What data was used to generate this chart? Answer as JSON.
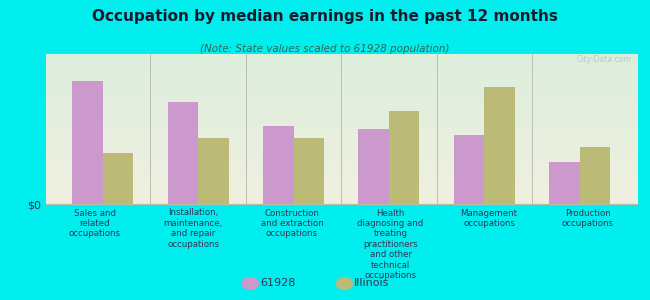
{
  "title": "Occupation by median earnings in the past 12 months",
  "subtitle": "(Note: State values scaled to 61928 population)",
  "background_color": "#00eeee",
  "plot_bg_top": "#ddeedd",
  "plot_bg_bottom": "#f0f0e0",
  "categories": [
    "Sales and\nrelated\noccupations",
    "Installation,\nmaintenance,\nand repair\noccupations",
    "Construction\nand extraction\noccupations",
    "Health\ndiagnosing and\ntreating\npractitioners\nand other\ntechnical\noccupations",
    "Management\noccupations",
    "Production\noccupations"
  ],
  "values_61928": [
    0.82,
    0.68,
    0.52,
    0.5,
    0.46,
    0.28
  ],
  "values_illinois": [
    0.34,
    0.44,
    0.44,
    0.62,
    0.78,
    0.38
  ],
  "color_61928": "#cc99cc",
  "color_illinois": "#bbbb77",
  "bar_width": 0.32,
  "ylabel": "$0",
  "title_color": "#1a1a2e",
  "subtitle_color": "#336655",
  "tick_color": "#333355",
  "legend_label_61928": "61928",
  "legend_label_illinois": "Illinois",
  "watermark": "City-Data.com"
}
